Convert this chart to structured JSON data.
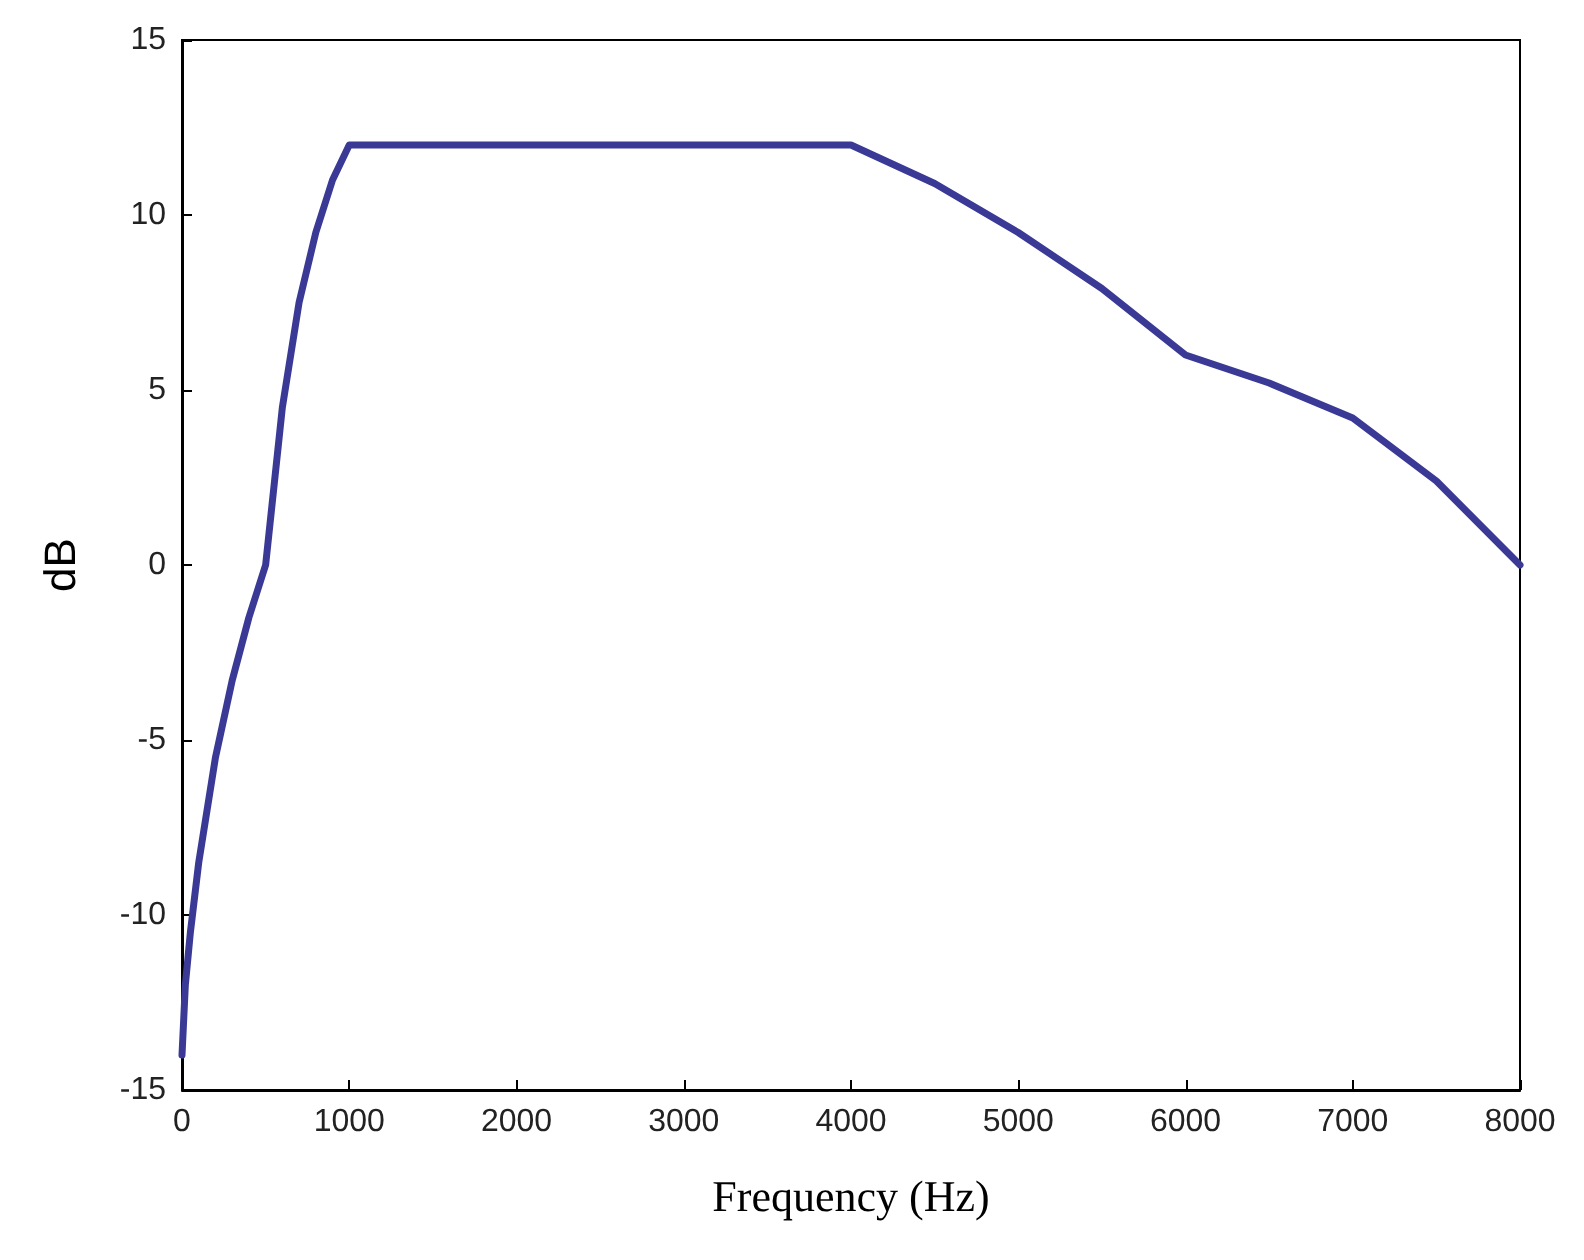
{
  "chart_data": {
    "type": "line",
    "xlabel": "Frequency (Hz)",
    "ylabel": "dB",
    "x": [
      0,
      20,
      50,
      100,
      200,
      300,
      400,
      500,
      600,
      700,
      800,
      900,
      1000,
      4000,
      4500,
      5000,
      5500,
      6000,
      6500,
      7000,
      7500,
      8000
    ],
    "series": [
      {
        "color": "#3a3a96",
        "values": [
          -14,
          -12,
          -10.5,
          -8.5,
          -5.5,
          -3.3,
          -1.5,
          0,
          4.5,
          7.5,
          9.5,
          11,
          12,
          12,
          10.9,
          9.5,
          7.9,
          6,
          5.2,
          4.2,
          2.4,
          0
        ]
      }
    ],
    "xlim": [
      0,
      8000
    ],
    "xticks": [
      0,
      1000,
      2000,
      3000,
      4000,
      5000,
      6000,
      7000,
      8000
    ],
    "ylim": [
      -15,
      15
    ],
    "yticks": [
      -15,
      -10,
      -5,
      0,
      5,
      10,
      15
    ],
    "grid": false,
    "marker": "none",
    "line_style": "solid"
  }
}
